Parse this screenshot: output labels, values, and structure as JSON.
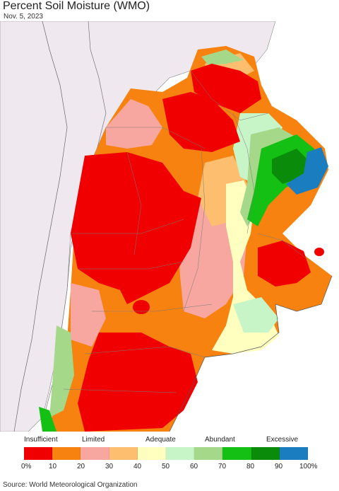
{
  "title": "Percent Soil Moisture (WMO)",
  "date": "Nov. 5, 2023",
  "source": "Source: World Meteorological Organization",
  "legend": {
    "categories": [
      "Insufficient",
      "Limited",
      "Adequate",
      "Abundant",
      "Excessive"
    ],
    "ticks": [
      "0%",
      "10",
      "20",
      "30",
      "40",
      "50",
      "60",
      "70",
      "80",
      "90",
      "100%"
    ],
    "colors": [
      "#f00000",
      "#f7820f",
      "#f7a6a0",
      "#fdbf6f",
      "#ffffc0",
      "#c8f5c8",
      "#a6d88a",
      "#14c014",
      "#0a8c0a",
      "#1a7dbf"
    ]
  },
  "map_colors": {
    "land_background": "#efe8ee",
    "ocean": "#ffffff"
  }
}
